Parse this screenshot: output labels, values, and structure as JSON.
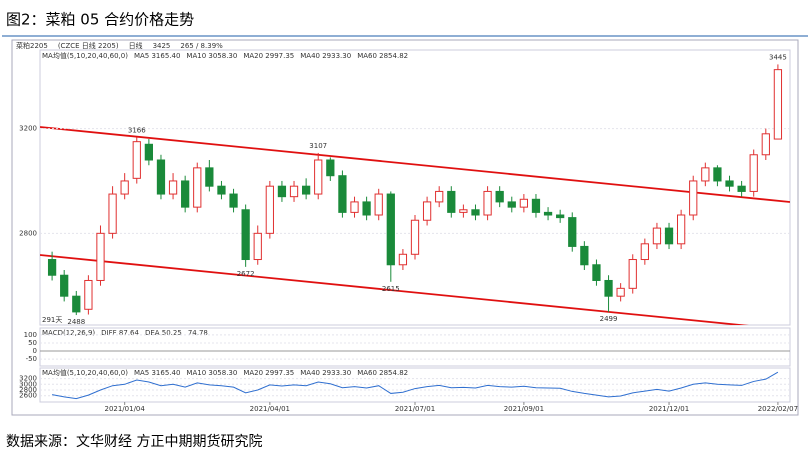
{
  "header": {
    "title": "图2：菜粕 05 合约价格走势"
  },
  "chart_data": {
    "type": "candlestick",
    "toolbar": [
      "菜粕2205",
      "(CZCE 日线 2205)",
      "日线",
      "3425",
      "265 / 8.39%"
    ],
    "ma_legend": [
      {
        "text": "MA均值(5,10,20,40,60,0)",
        "color": "#555555"
      },
      {
        "text": "MA5 3165.40",
        "color": "#333333"
      },
      {
        "text": "MA10 3058.30",
        "color": "#2f6fd0"
      },
      {
        "text": "MA20 2997.35",
        "color": "#d030d0"
      },
      {
        "text": "MA40 2933.30",
        "color": "#2a9a2a"
      },
      {
        "text": "MA60 2854.82",
        "color": "#777777"
      }
    ],
    "macd_legend": [
      {
        "text": "MACD(12,26,9)",
        "color": "#555555"
      },
      {
        "text": "DIFF 87.64",
        "color": "#333333"
      },
      {
        "text": "DEA 50.25",
        "color": "#2f6fd0"
      },
      {
        "text": "74.78",
        "color": "#333333"
      }
    ],
    "span_label": "291天",
    "up_color": "#e03030",
    "down_color": "#1a8a3a",
    "open": [
      2700,
      2640,
      2560,
      2510,
      2620,
      2800,
      2950,
      3010,
      3140,
      3080,
      2950,
      3000,
      2900,
      3050,
      2980,
      2950,
      2890,
      2700,
      2800,
      2980,
      2940,
      2980,
      2950,
      3080,
      3020,
      2880,
      2920,
      2870,
      2950,
      2680,
      2720,
      2850,
      2920,
      2960,
      2880,
      2890,
      2870,
      2960,
      2920,
      2900,
      2930,
      2880,
      2870,
      2860,
      2750,
      2680,
      2620,
      2560,
      2590,
      2700,
      2760,
      2820,
      2760,
      2870,
      3000,
      3050,
      3000,
      2980,
      2960,
      3100,
      3160
    ],
    "high": [
      2730,
      2660,
      2580,
      2640,
      2830,
      2980,
      3030,
      3166,
      3160,
      3100,
      3030,
      3020,
      3070,
      3080,
      3000,
      2970,
      2910,
      2830,
      3000,
      3000,
      3000,
      3010,
      3107,
      3090,
      3040,
      2940,
      2940,
      2970,
      2960,
      2740,
      2870,
      2940,
      2980,
      2980,
      2910,
      2910,
      2980,
      2980,
      2940,
      2950,
      2950,
      2900,
      2890,
      2880,
      2770,
      2700,
      2640,
      2610,
      2720,
      2780,
      2840,
      2840,
      2890,
      3020,
      3070,
      3060,
      3020,
      3000,
      3120,
      3200,
      3445
    ],
    "low": [
      2620,
      2540,
      2488,
      2490,
      2600,
      2780,
      2930,
      2990,
      3060,
      2930,
      2930,
      2880,
      2880,
      2960,
      2930,
      2880,
      2672,
      2680,
      2780,
      2920,
      2920,
      2930,
      2930,
      3000,
      2860,
      2860,
      2850,
      2850,
      2615,
      2660,
      2700,
      2830,
      2900,
      2860,
      2860,
      2850,
      2850,
      2900,
      2880,
      2880,
      2860,
      2850,
      2840,
      2730,
      2660,
      2600,
      2499,
      2540,
      2570,
      2680,
      2740,
      2740,
      2740,
      2850,
      2980,
      2980,
      2960,
      2940,
      2940,
      3080,
      3160
    ],
    "close": [
      2640,
      2560,
      2500,
      2620,
      2800,
      2950,
      3000,
      3150,
      3080,
      2950,
      3000,
      2900,
      3050,
      2980,
      2950,
      2900,
      2700,
      2800,
      2980,
      2940,
      2980,
      2950,
      3080,
      3020,
      2880,
      2920,
      2870,
      2950,
      2680,
      2720,
      2850,
      2920,
      2960,
      2880,
      2890,
      2870,
      2960,
      2920,
      2900,
      2930,
      2880,
      2870,
      2860,
      2750,
      2680,
      2620,
      2560,
      2590,
      2700,
      2760,
      2820,
      2760,
      2870,
      3000,
      3050,
      3000,
      2980,
      2960,
      3100,
      3180,
      3425
    ],
    "annotations": [
      {
        "x": 2,
        "value": 2488
      },
      {
        "x": 7,
        "value": 3166
      },
      {
        "x": 16,
        "value": 2672
      },
      {
        "x": 22,
        "value": 3107
      },
      {
        "x": 28,
        "value": 2615
      },
      {
        "x": 46,
        "value": 2499
      },
      {
        "x": 60,
        "value": 3445
      }
    ],
    "xlim": [
      -1,
      61
    ],
    "xticks": [
      {
        "value": 6,
        "label": "2021/01/04"
      },
      {
        "value": 18,
        "label": "2021/04/01"
      },
      {
        "value": 30,
        "label": "2021/07/01"
      },
      {
        "value": 39,
        "label": "2021/09/01"
      },
      {
        "value": 51,
        "label": "2021/12/01"
      },
      {
        "value": 60,
        "label": "2022/02/07"
      }
    ],
    "ylim": [
      2450,
      3500
    ],
    "yticks": [
      2800,
      3200
    ],
    "macd_ylim": [
      -80,
      130
    ],
    "macd_yticks": [
      100,
      50,
      0,
      -50
    ],
    "lower_ylim": [
      2450,
      3500
    ],
    "lower_yticks": [
      3200,
      3000,
      2800,
      2600
    ]
  },
  "footer": {
    "source": "数据来源：文华财经 方正中期期货研究院"
  }
}
